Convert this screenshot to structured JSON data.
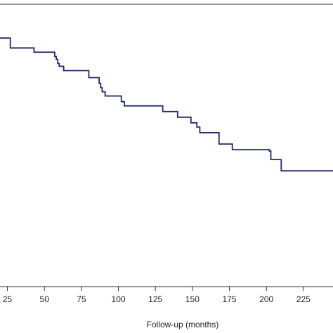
{
  "chart_data": {
    "type": "line",
    "title": "",
    "xlabel": "Follow-up (months)",
    "ylabel": "",
    "x_ticks": [
      25,
      50,
      75,
      100,
      125,
      150,
      175,
      200,
      225
    ],
    "x_tick_labels": [
      "25",
      "50",
      "75",
      "100",
      "125",
      "150",
      "175",
      "200",
      "225"
    ],
    "xlim": [
      20,
      245
    ],
    "ylim": [
      0,
      1
    ],
    "grid": false,
    "line_color": "#1f2a6b",
    "series": [
      {
        "step": "post",
        "x": [
          0,
          27,
          43,
          57,
          58,
          59,
          60,
          63,
          80,
          87,
          88,
          89,
          91,
          102,
          104,
          130,
          140,
          149,
          153,
          155,
          168,
          177,
          202,
          203,
          210,
          245
        ],
        "y": [
          0.88,
          0.845,
          0.83,
          0.815,
          0.805,
          0.79,
          0.78,
          0.765,
          0.74,
          0.72,
          0.705,
          0.69,
          0.675,
          0.655,
          0.64,
          0.62,
          0.6,
          0.58,
          0.565,
          0.545,
          0.505,
          0.485,
          0.48,
          0.45,
          0.41,
          0.41
        ]
      }
    ]
  }
}
